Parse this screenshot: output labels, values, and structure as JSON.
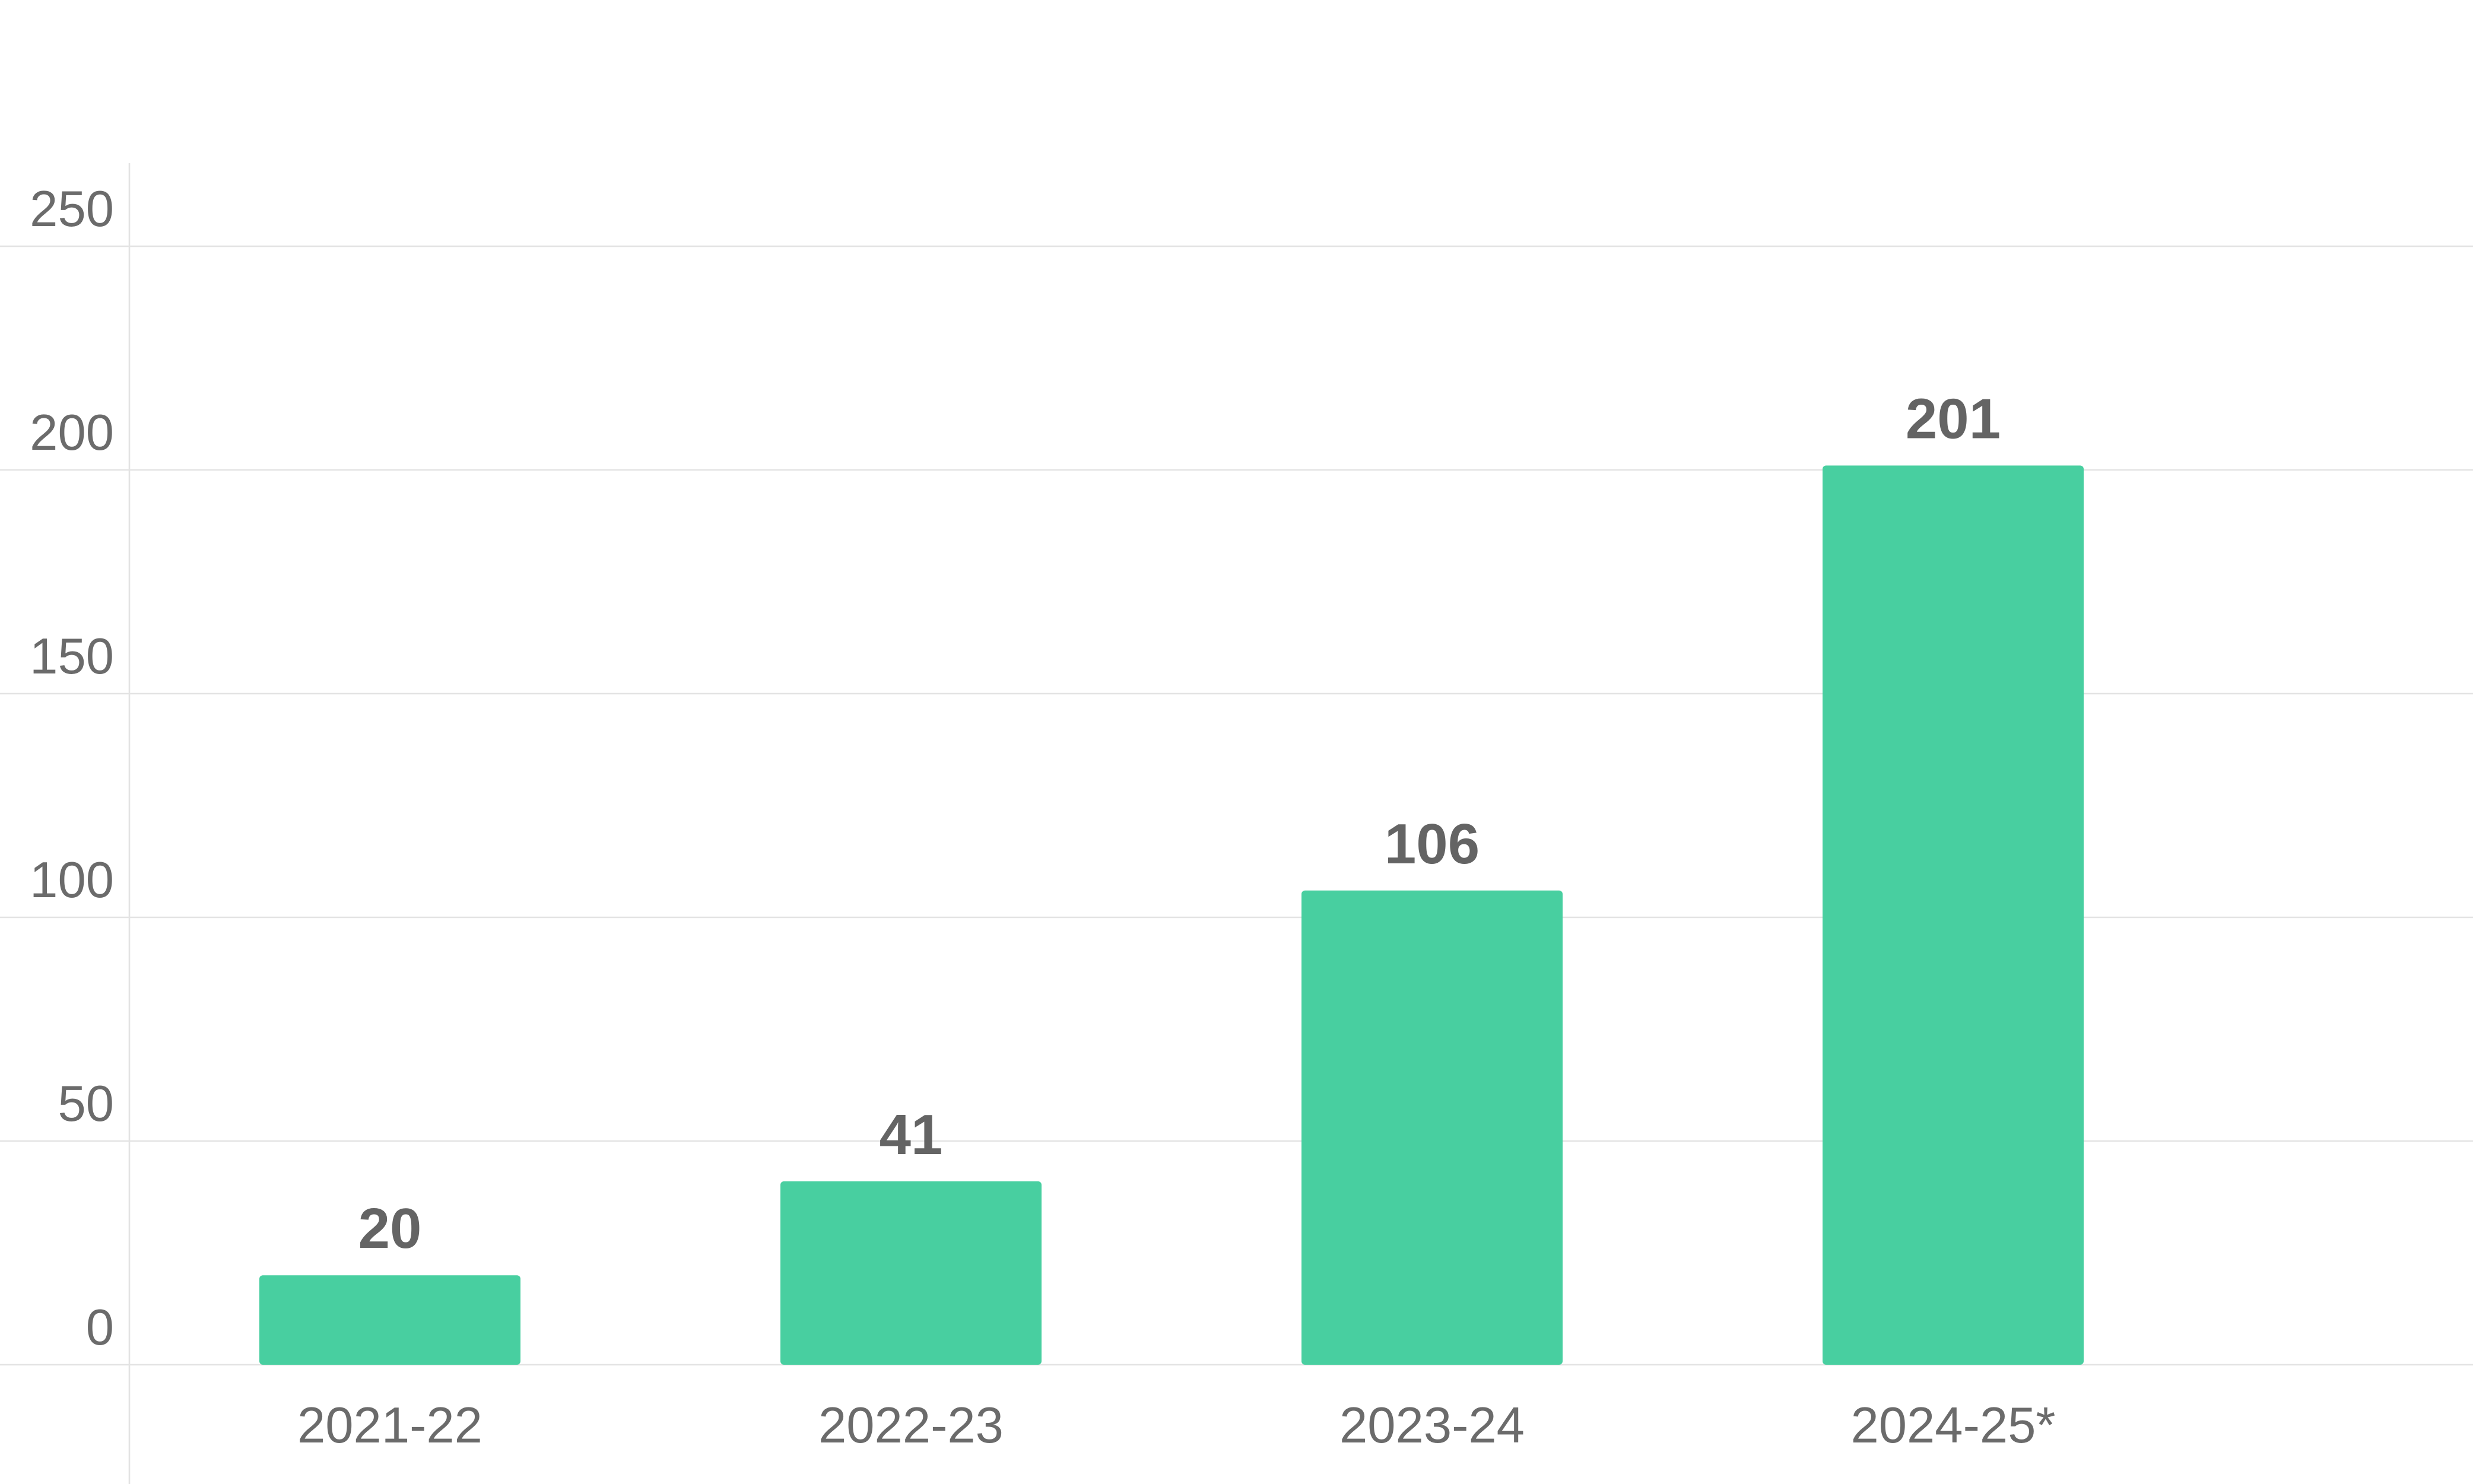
{
  "chart_data": {
    "type": "bar",
    "title": "",
    "xlabel": "",
    "ylabel": "",
    "categories": [
      "2021-22",
      "2022-23",
      "2023-24",
      "2024-25*"
    ],
    "values": [
      20,
      41,
      106,
      201
    ],
    "data_labels": [
      "20",
      "41",
      "106",
      "201"
    ],
    "ylim": [
      0,
      250
    ],
    "yticks": [
      0,
      50,
      100,
      150,
      200,
      250
    ],
    "ytick_labels": [
      "0",
      "50",
      "100",
      "150",
      "200",
      "250"
    ],
    "bar_color": "#48cfa0",
    "grid": true,
    "legend": "none"
  }
}
